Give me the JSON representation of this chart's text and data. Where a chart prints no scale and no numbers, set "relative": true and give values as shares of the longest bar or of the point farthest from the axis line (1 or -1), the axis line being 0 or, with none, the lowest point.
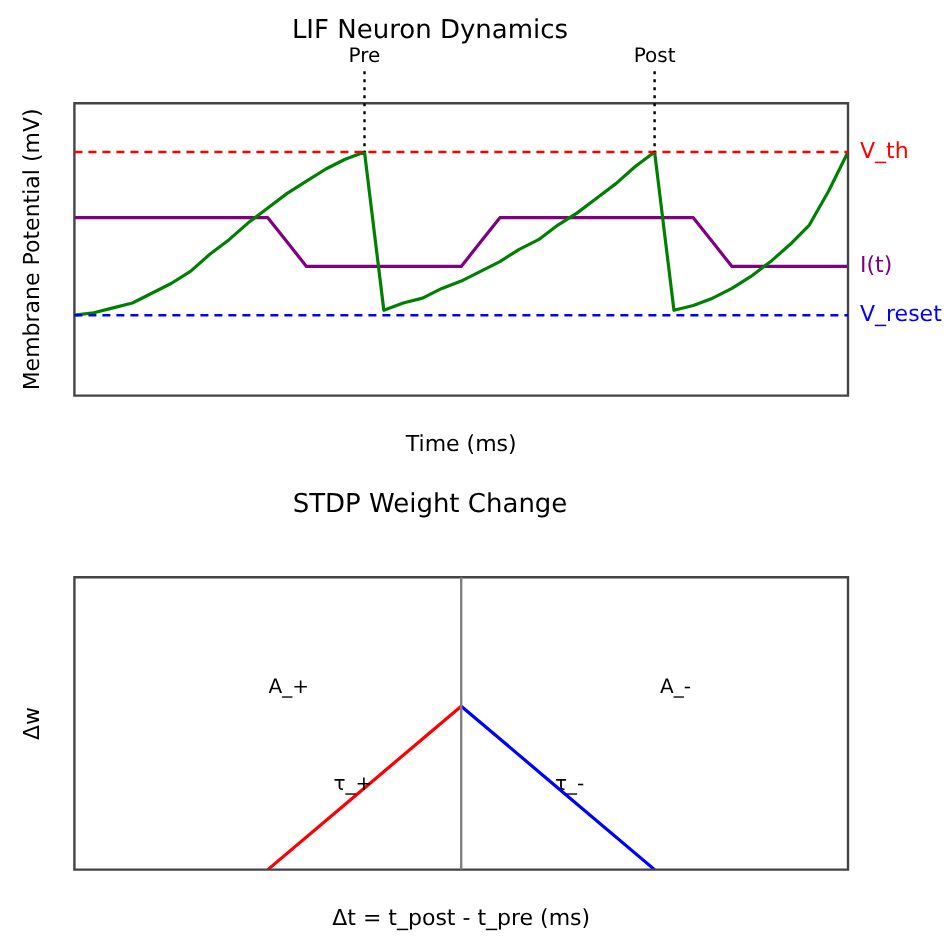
{
  "chart_data": [
    {
      "type": "line",
      "title": "LIF Neuron Dynamics",
      "xlabel": "Time (ms)",
      "ylabel": "Membrane Potential (mV)",
      "relative": true,
      "grid": false,
      "legend": false,
      "marker": "none",
      "categories": [
        null,
        null,
        null,
        null,
        null,
        null,
        null,
        null,
        null,
        null,
        null,
        null,
        null,
        null,
        null,
        null,
        null,
        null,
        null,
        null,
        null,
        null,
        null,
        null,
        null,
        null,
        null,
        null,
        null,
        null,
        null,
        null,
        null,
        null,
        null,
        null,
        null,
        null,
        null,
        null,
        null
      ],
      "series": [
        {
          "color": "#008000",
          "values": [
            0.33,
            0.34,
            0.36,
            0.38,
            0.42,
            0.46,
            0.51,
            0.58,
            0.64,
            0.71,
            0.77,
            0.83,
            0.88,
            0.93,
            0.97,
            1,
            0.35,
            0.38,
            0.4,
            0.44,
            0.47,
            0.51,
            0.55,
            0.6,
            0.64,
            0.7,
            0.75,
            0.81,
            0.87,
            0.94,
            1,
            0.35,
            0.37,
            0.4,
            0.44,
            0.49,
            0.55,
            0.62,
            0.7,
            0.84,
            1
          ]
        },
        {
          "name": "I(t)",
          "color": "#800080",
          "values": [
            0.73,
            0.73,
            0.73,
            0.73,
            0.73,
            0.73,
            0.73,
            0.73,
            0.73,
            0.73,
            0.73,
            0.63,
            0.53,
            0.53,
            0.53,
            0.53,
            0.53,
            0.53,
            0.53,
            0.53,
            0.53,
            0.63,
            0.73,
            0.73,
            0.73,
            0.73,
            0.73,
            0.73,
            0.73,
            0.73,
            0.73,
            0.73,
            0.73,
            0.63,
            0.53,
            0.53,
            0.53,
            0.53,
            0.53,
            0.53,
            0.53
          ]
        }
      ],
      "ref_lines": [
        {
          "axis": "y",
          "value": 1,
          "label": "V_th",
          "color": "#ff0000",
          "line_style": "dashed"
        },
        {
          "axis": "y",
          "value": 0.33,
          "label": "V_reset",
          "color": "#0000ff",
          "line_style": "dashed"
        }
      ],
      "annotations": [
        "Pre",
        "Post"
      ]
    },
    {
      "type": "line",
      "title": "STDP Weight Change",
      "xlabel": "Δt = t_post - t_pre (ms)",
      "ylabel": "Δw",
      "relative": true,
      "grid": false,
      "legend": false,
      "marker": "none",
      "categories": [
        null,
        null,
        null,
        null,
        null,
        null,
        null,
        null,
        null
      ],
      "series": [
        {
          "color": "#ff0000",
          "values": [
            null,
            null,
            0,
            0.5,
            1,
            null,
            null,
            null,
            null
          ]
        },
        {
          "color": "#0000ff",
          "values": [
            null,
            null,
            null,
            null,
            1,
            0.5,
            0,
            null,
            null
          ]
        }
      ],
      "annotations": [
        "A_+",
        "A_-",
        "τ_+",
        "τ_-"
      ]
    }
  ]
}
